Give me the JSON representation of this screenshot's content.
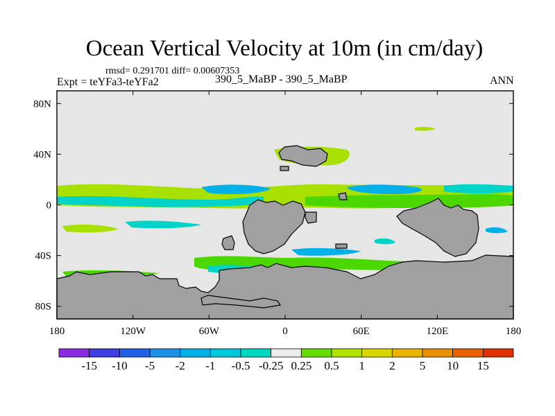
{
  "title": "Ocean Vertical Velocity at 10m (in cm/day)",
  "stats": "rmsd= 0.291701 diff= 0.00607353",
  "experiment": "Expt = teYFa3-teYFa2",
  "center_label": "390_5_MaBP - 390_5_MaBP",
  "season": "ANN",
  "colors": {
    "land": "#a0a0a0",
    "ocean_neutral": "#e6e6e6",
    "positive_low": "#4dd700",
    "positive_mid": "#a8e000",
    "negative_low": "#00d3c8",
    "negative_mid": "#00b0e6"
  },
  "map": {
    "lat_ticks": [
      "80N",
      "40N",
      "0",
      "40S",
      "80S"
    ],
    "lon_ticks": [
      "180",
      "120W",
      "60W",
      "0",
      "60E",
      "120E",
      "180"
    ],
    "lat_values": [
      80,
      40,
      0,
      -40,
      -80
    ],
    "lon_values": [
      -180,
      -120,
      -60,
      0,
      60,
      120,
      180
    ],
    "lat_range": [
      -90,
      90
    ],
    "lon_range": [
      -180,
      180
    ]
  },
  "colorbar": {
    "colors": [
      "#8a2be2",
      "#3d3de0",
      "#2060e6",
      "#1a90e6",
      "#00b0e6",
      "#00c8dc",
      "#00d8c0",
      "#ececec",
      "#66dd00",
      "#b0e400",
      "#d8d800",
      "#e8b400",
      "#e89000",
      "#e86000",
      "#e03000"
    ],
    "labels": [
      "-15",
      "-10",
      "-5",
      "-2",
      "-1",
      "-0.5",
      "-0.25",
      "0.25",
      "0.5",
      "1",
      "2",
      "5",
      "10",
      "15"
    ]
  }
}
